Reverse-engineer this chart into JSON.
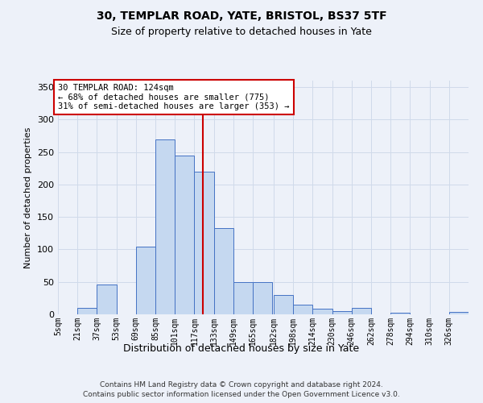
{
  "title1": "30, TEMPLAR ROAD, YATE, BRISTOL, BS37 5TF",
  "title2": "Size of property relative to detached houses in Yate",
  "xlabel": "Distribution of detached houses by size in Yate",
  "ylabel": "Number of detached properties",
  "footer1": "Contains HM Land Registry data © Crown copyright and database right 2024.",
  "footer2": "Contains public sector information licensed under the Open Government Licence v3.0.",
  "annotation_title": "30 TEMPLAR ROAD: 124sqm",
  "annotation_line1": "← 68% of detached houses are smaller (775)",
  "annotation_line2": "31% of semi-detached houses are larger (353) →",
  "property_size": 124,
  "bin_starts": [
    5,
    21,
    37,
    53,
    69,
    85,
    101,
    117,
    133,
    149,
    165,
    182,
    198,
    214,
    230,
    246,
    262,
    278,
    294,
    310,
    326
  ],
  "bar_heights": [
    0,
    10,
    46,
    0,
    104,
    270,
    244,
    220,
    133,
    50,
    50,
    30,
    15,
    9,
    5,
    10,
    0,
    2,
    0,
    0,
    4
  ],
  "bin_labels": [
    "5sqm",
    "21sqm",
    "37sqm",
    "53sqm",
    "69sqm",
    "85sqm",
    "101sqm",
    "117sqm",
    "133sqm",
    "149sqm",
    "165sqm",
    "182sqm",
    "198sqm",
    "214sqm",
    "230sqm",
    "246sqm",
    "262sqm",
    "278sqm",
    "294sqm",
    "310sqm",
    "326sqm"
  ],
  "bar_fill_color": "#c5d8f0",
  "bar_edge_color": "#4472c4",
  "vline_color": "#cc0000",
  "vline_x": 124,
  "annotation_box_color": "#cc0000",
  "grid_color": "#d0daea",
  "bg_color": "#edf1f9",
  "ylim": [
    0,
    360
  ],
  "yticks": [
    0,
    50,
    100,
    150,
    200,
    250,
    300,
    350
  ]
}
